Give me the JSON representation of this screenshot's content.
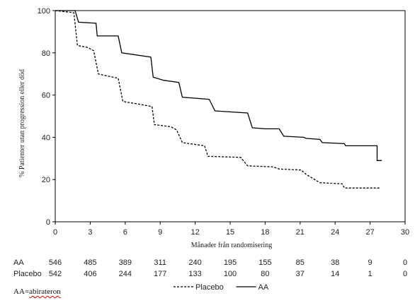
{
  "chart_data": {
    "type": "line",
    "subtype": "kaplan-meier step",
    "xlabel": "Månader från randomisering",
    "ylabel": "% Patienter utan progression eller död",
    "xlim": [
      0,
      30
    ],
    "ylim": [
      0,
      100
    ],
    "xticks": [
      "0",
      "3",
      "6",
      "9",
      "12",
      "15",
      "18",
      "21",
      "24",
      "27",
      "30"
    ],
    "yticks": [
      "0",
      "20",
      "40",
      "60",
      "80",
      "100"
    ],
    "grid": false,
    "series": [
      {
        "name": "AA",
        "style": "solid",
        "color": "#000000",
        "points": [
          [
            0,
            100
          ],
          [
            1.7,
            100
          ],
          [
            2,
            94.5
          ],
          [
            3.5,
            94
          ],
          [
            3.6,
            88
          ],
          [
            5.4,
            88
          ],
          [
            5.7,
            80
          ],
          [
            8.2,
            78
          ],
          [
            8.4,
            68.5
          ],
          [
            9.3,
            67
          ],
          [
            10.6,
            66
          ],
          [
            10.9,
            59
          ],
          [
            13.2,
            58
          ],
          [
            13.7,
            52.5
          ],
          [
            16.5,
            51.5
          ],
          [
            16.9,
            44.5
          ],
          [
            18,
            44
          ],
          [
            19.2,
            44
          ],
          [
            19.6,
            40.5
          ],
          [
            21.3,
            40
          ],
          [
            21.5,
            39.5
          ],
          [
            22.7,
            39
          ],
          [
            22.9,
            37.5
          ],
          [
            24.8,
            37
          ],
          [
            24.9,
            36
          ],
          [
            27.6,
            36
          ],
          [
            27.6,
            29
          ],
          [
            28,
            29
          ]
        ]
      },
      {
        "name": "Placebo",
        "style": "dashed",
        "color": "#000000",
        "points": [
          [
            0,
            100
          ],
          [
            1.6,
            99
          ],
          [
            1.9,
            83.5
          ],
          [
            2.8,
            82.5
          ],
          [
            3.3,
            81
          ],
          [
            3.7,
            70
          ],
          [
            4.5,
            69
          ],
          [
            5.4,
            68
          ],
          [
            5.8,
            57
          ],
          [
            7.4,
            55.5
          ],
          [
            8.3,
            54.5
          ],
          [
            8.5,
            46
          ],
          [
            9.9,
            45
          ],
          [
            10.4,
            43.5
          ],
          [
            10.9,
            37.5
          ],
          [
            12.8,
            36
          ],
          [
            13.1,
            31
          ],
          [
            15.9,
            30.5
          ],
          [
            16.5,
            26.5
          ],
          [
            18.7,
            26
          ],
          [
            19.2,
            25
          ],
          [
            21.1,
            24.5
          ],
          [
            21.5,
            22.5
          ],
          [
            22.7,
            18.5
          ],
          [
            24.6,
            18
          ],
          [
            24.8,
            16
          ],
          [
            27.8,
            16
          ]
        ]
      }
    ],
    "risk_table": {
      "AA": [
        "546",
        "485",
        "389",
        "311",
        "240",
        "195",
        "155",
        "85",
        "38",
        "9",
        "0"
      ],
      "Placebo": [
        "542",
        "406",
        "244",
        "177",
        "133",
        "100",
        "80",
        "37",
        "14",
        "1",
        "0"
      ]
    },
    "legend": [
      {
        "label": "Placebo",
        "style": "dashed"
      },
      {
        "label": "AA",
        "style": "solid"
      }
    ],
    "legend_position": "bottom-center"
  },
  "footnote": {
    "abbr": "AA",
    "separator": "=",
    "word": "abirateron"
  }
}
